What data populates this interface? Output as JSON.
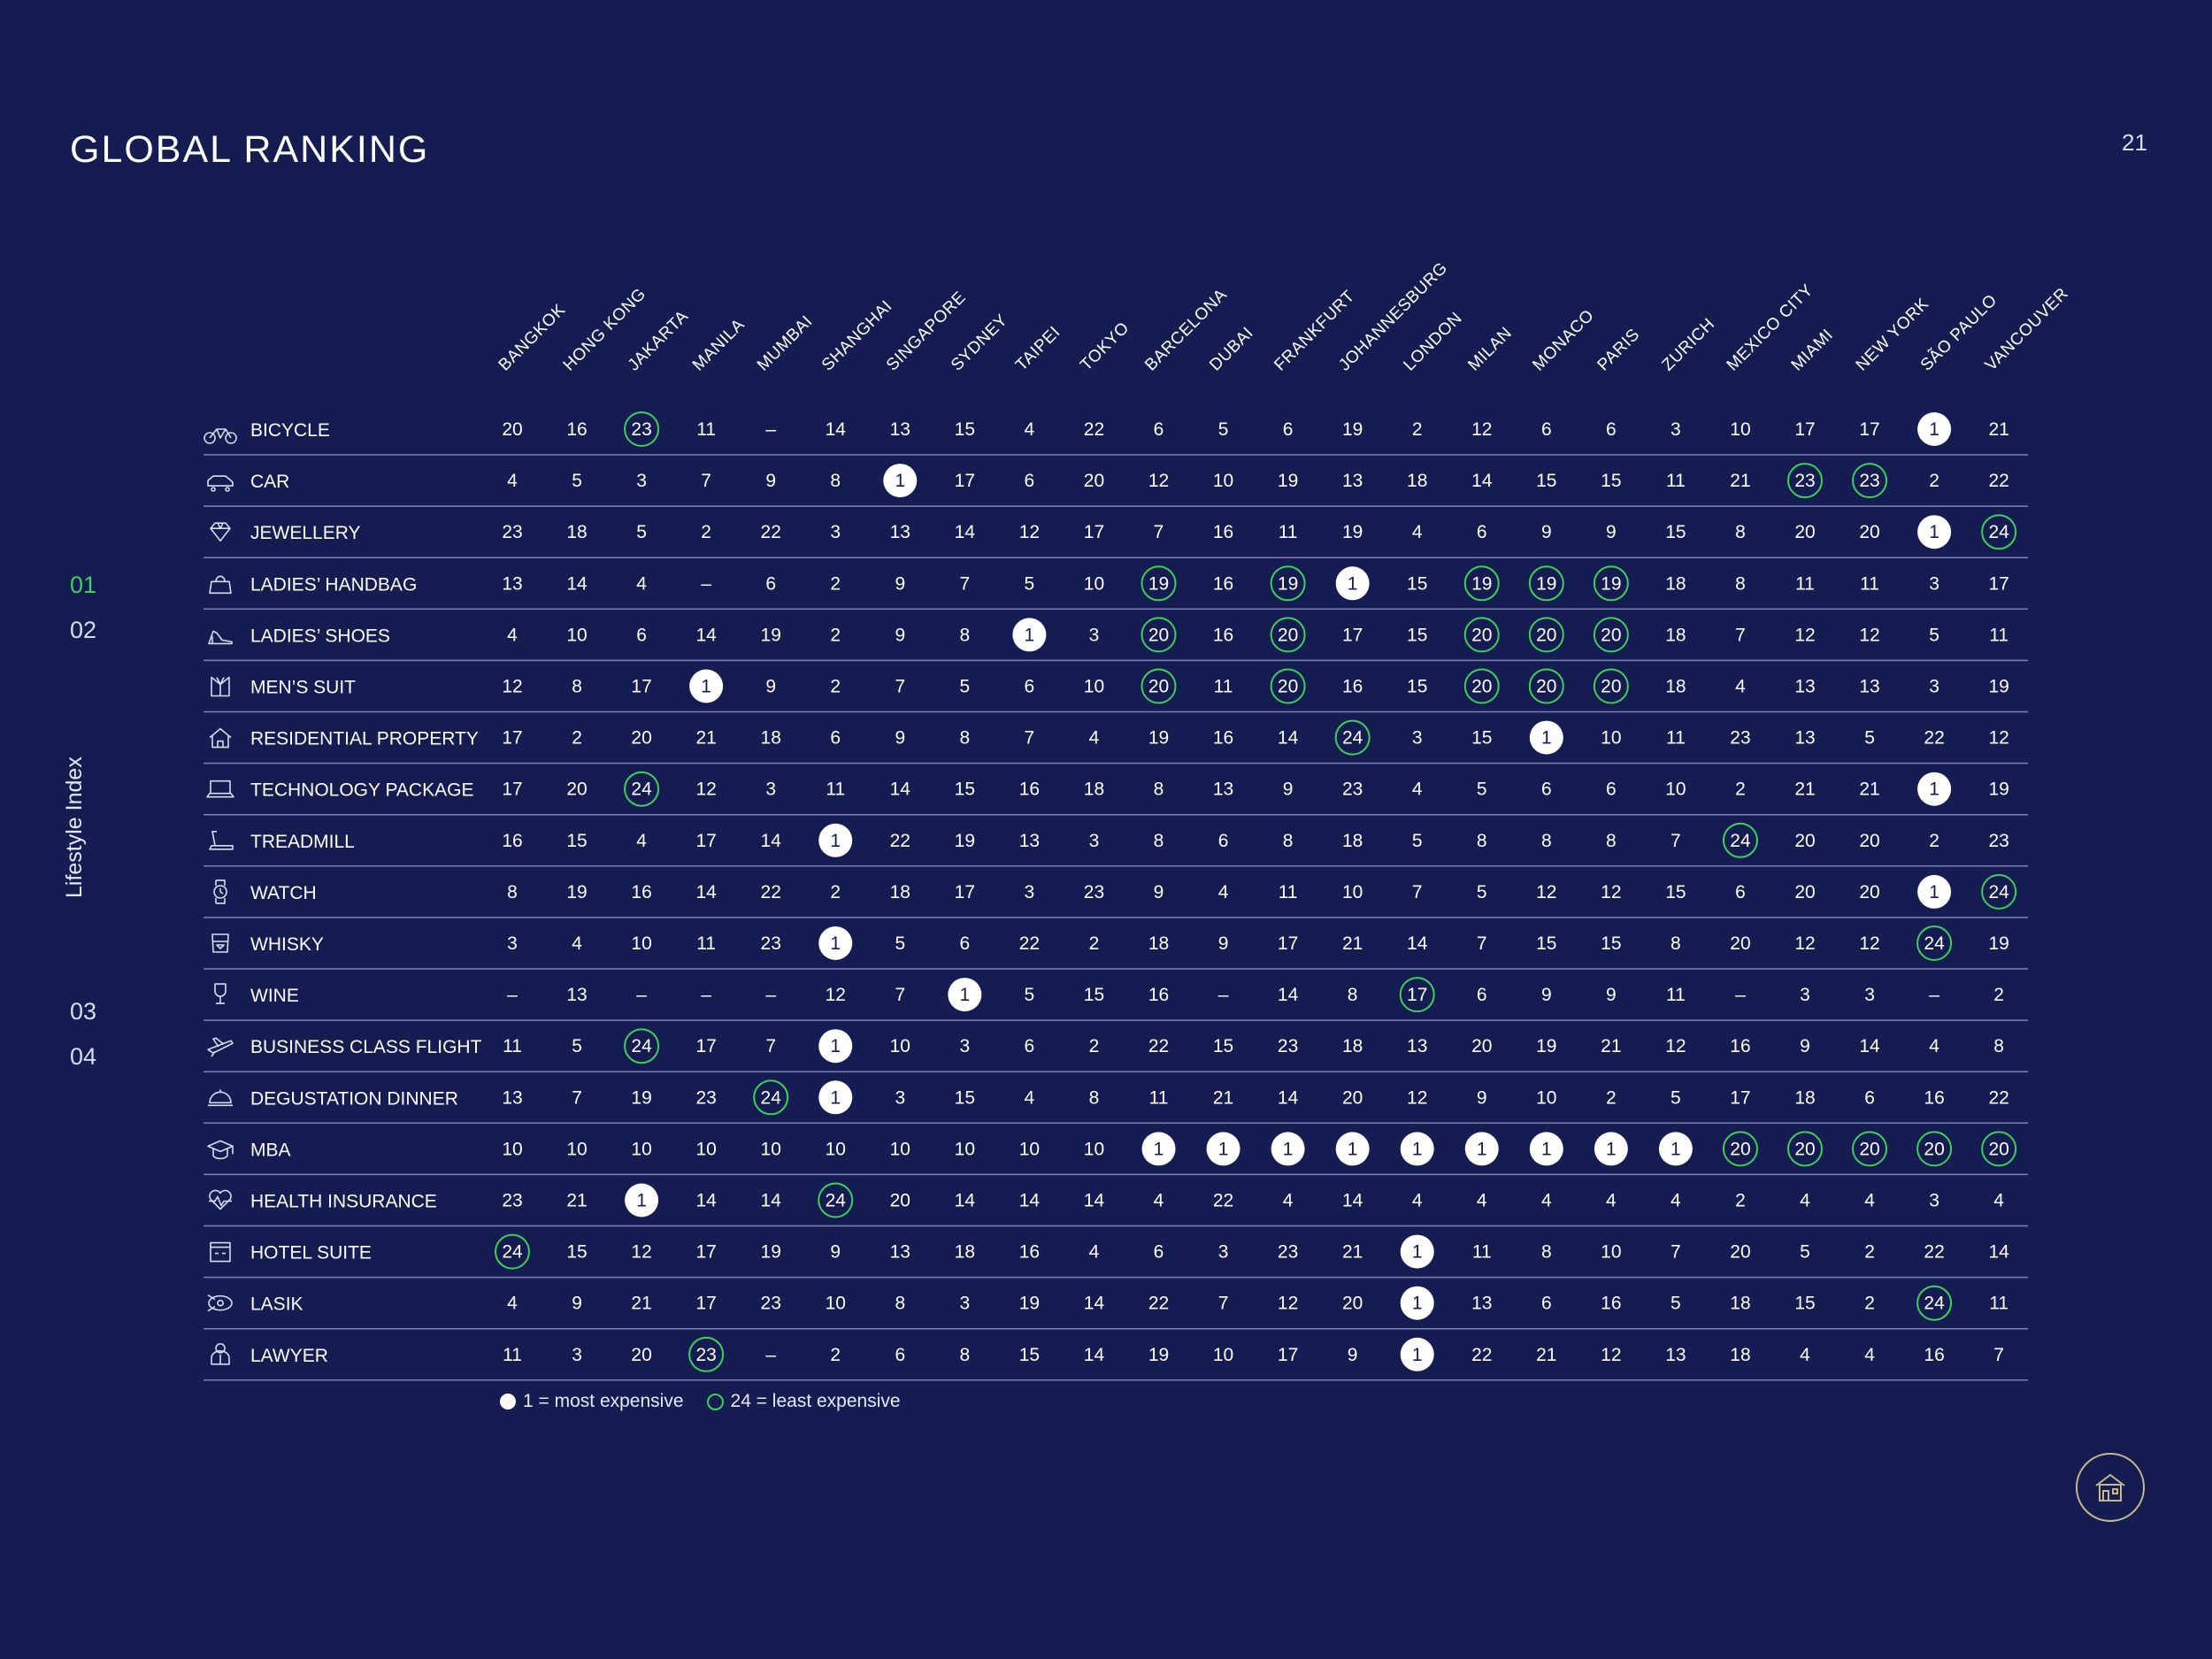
{
  "page": {
    "title": "GLOBAL RANKING",
    "page_number": "21",
    "side_label": "Lifestyle Index",
    "nav": [
      "01",
      "02",
      "03",
      "04"
    ],
    "active_nav": "01"
  },
  "legend": {
    "most": "1 = most expensive",
    "least": "24 = least expensive"
  },
  "colors": {
    "background": "#141c52",
    "text": "#ffffff",
    "accent_green": "#3fcf5a",
    "divider": "#7c84b4"
  },
  "table": {
    "cities": [
      "BANGKOK",
      "HONG KONG",
      "JAKARTA",
      "MANILA",
      "MUMBAI",
      "SHANGHAI",
      "SINGAPORE",
      "SYDNEY",
      "TAIPEI",
      "TOKYO",
      "BARCELONA",
      "DUBAI",
      "FRANKFURT",
      "JOHANNESBURG",
      "LONDON",
      "MILAN",
      "MONACO",
      "PARIS",
      "ZURICH",
      "MEXICO CITY",
      "MIAMI",
      "NEW YORK",
      "SÃO PAULO",
      "VANCOUVER"
    ],
    "rows": [
      {
        "label": "BICYCLE",
        "icon": "bicycle-icon",
        "values": [
          "20",
          "16",
          "23",
          "11",
          "–",
          "14",
          "13",
          "15",
          "4",
          "22",
          "6",
          "5",
          "6",
          "19",
          "2",
          "12",
          "6",
          "6",
          "3",
          "10",
          "17",
          "17",
          "1",
          "21"
        ]
      },
      {
        "label": "CAR",
        "icon": "car-icon",
        "values": [
          "4",
          "5",
          "3",
          "7",
          "9",
          "8",
          "1",
          "17",
          "6",
          "20",
          "12",
          "10",
          "19",
          "13",
          "18",
          "14",
          "15",
          "15",
          "11",
          "21",
          "23",
          "23",
          "2",
          "22"
        ]
      },
      {
        "label": "JEWELLERY",
        "icon": "diamond-icon",
        "values": [
          "23",
          "18",
          "5",
          "2",
          "22",
          "3",
          "13",
          "14",
          "12",
          "17",
          "7",
          "16",
          "11",
          "19",
          "4",
          "6",
          "9",
          "9",
          "15",
          "8",
          "20",
          "20",
          "1",
          "24"
        ]
      },
      {
        "label": "LADIES’ HANDBAG",
        "icon": "handbag-icon",
        "values": [
          "13",
          "14",
          "4",
          "–",
          "6",
          "2",
          "9",
          "7",
          "5",
          "10",
          "19",
          "16",
          "19",
          "1",
          "15",
          "19",
          "19",
          "19",
          "18",
          "8",
          "11",
          "11",
          "3",
          "17"
        ]
      },
      {
        "label": " LADIES’ SHOES",
        "icon": "high-heel-icon",
        "values": [
          "4",
          "10",
          "6",
          "14",
          "19",
          "2",
          "9",
          "8",
          "1",
          "3",
          "20",
          "16",
          "20",
          "17",
          "15",
          "20",
          "20",
          "20",
          "18",
          "7",
          "12",
          "12",
          "5",
          "11"
        ]
      },
      {
        "label": "MEN’S SUIT",
        "icon": "suit-icon",
        "values": [
          "12",
          "8",
          "17",
          "1",
          "9",
          "2",
          "7",
          "5",
          "6",
          "10",
          "20",
          "11",
          "20",
          "16",
          "15",
          "20",
          "20",
          "20",
          "18",
          "4",
          "13",
          "13",
          "3",
          "19"
        ]
      },
      {
        "label": "RESIDENTIAL PROPERTY",
        "icon": "house-icon",
        "values": [
          "17",
          "2",
          "20",
          "21",
          "18",
          "6",
          "9",
          "8",
          "7",
          "4",
          "19",
          "16",
          "14",
          "24",
          "3",
          "15",
          "1",
          "10",
          "11",
          "23",
          "13",
          "5",
          "22",
          "12"
        ]
      },
      {
        "label": "TECHNOLOGY PACKAGE",
        "icon": "laptop-icon",
        "values": [
          "17",
          "20",
          "24",
          "12",
          "3",
          "11",
          "14",
          "15",
          "16",
          "18",
          "8",
          "13",
          "9",
          "23",
          "4",
          "5",
          "6",
          "6",
          "10",
          "2",
          "21",
          "21",
          "1",
          "19"
        ]
      },
      {
        "label": "TREADMILL",
        "icon": "treadmill-icon",
        "values": [
          "16",
          "15",
          "4",
          "17",
          "14",
          "1",
          "22",
          "19",
          "13",
          "3",
          "8",
          "6",
          "8",
          "18",
          "5",
          "8",
          "8",
          "8",
          "7",
          "24",
          "20",
          "20",
          "2",
          "23"
        ]
      },
      {
        "label": "WATCH",
        "icon": "watch-icon",
        "values": [
          "8",
          "19",
          "16",
          "14",
          "22",
          "2",
          "18",
          "17",
          "3",
          "23",
          "9",
          "4",
          "11",
          "10",
          "7",
          "5",
          "12",
          "12",
          "15",
          "6",
          "20",
          "20",
          "1",
          "24"
        ]
      },
      {
        "label": "WHISKY",
        "icon": "whisky-glass-icon",
        "values": [
          "3",
          "4",
          "10",
          "11",
          "23",
          "1",
          "5",
          "6",
          "22",
          "2",
          "18",
          "9",
          "17",
          "21",
          "14",
          "7",
          "15",
          "15",
          "8",
          "20",
          "12",
          "12",
          "24",
          "19"
        ]
      },
      {
        "label": "WINE",
        "icon": "wine-glass-icon",
        "values": [
          "–",
          "13",
          "–",
          "–",
          "–",
          "12",
          "7",
          "1",
          "5",
          "15",
          "16",
          "–",
          "14",
          "8",
          "17",
          "6",
          "9",
          "9",
          "11",
          "–",
          "3",
          "3",
          "–",
          "2"
        ]
      },
      {
        "label": "BUSINESS CLASS FLIGHT",
        "icon": "airplane-icon",
        "values": [
          "11",
          "5",
          "24",
          "17",
          "7",
          "1",
          "10",
          "3",
          "6",
          "2",
          "22",
          "15",
          "23",
          "18",
          "13",
          "20",
          "19",
          "21",
          "12",
          "16",
          "9",
          "14",
          "4",
          "8"
        ]
      },
      {
        "label": "DEGUSTATION DINNER",
        "icon": "cloche-icon",
        "values": [
          "13",
          "7",
          "19",
          "23",
          "24",
          "1",
          "3",
          "15",
          "4",
          "8",
          "11",
          "21",
          "14",
          "20",
          "12",
          "9",
          "10",
          "2",
          "5",
          "17",
          "18",
          "6",
          "16",
          "22"
        ]
      },
      {
        "label": "MBA",
        "icon": "graduation-cap-icon",
        "values": [
          "10",
          "10",
          "10",
          "10",
          "10",
          "10",
          "10",
          "10",
          "10",
          "10",
          "1",
          "1",
          "1",
          "1",
          "1",
          "1",
          "1",
          "1",
          "1",
          "20",
          "20",
          "20",
          "20",
          "20"
        ]
      },
      {
        "label": "HEALTH INSURANCE",
        "icon": "heartbeat-icon",
        "values": [
          "23",
          "21",
          "1",
          "14",
          "14",
          "24",
          "20",
          "14",
          "14",
          "14",
          "4",
          "22",
          "4",
          "14",
          "4",
          "4",
          "4",
          "4",
          "4",
          "2",
          "4",
          "4",
          "3",
          "4"
        ]
      },
      {
        "label": "HOTEL SUITE",
        "icon": "hotel-icon",
        "values": [
          "24",
          "15",
          "12",
          "17",
          "19",
          "9",
          "13",
          "18",
          "16",
          "4",
          "6",
          "3",
          "23",
          "21",
          "1",
          "11",
          "8",
          "10",
          "7",
          "20",
          "5",
          "2",
          "22",
          "14"
        ]
      },
      {
        "label": "LASIK",
        "icon": "eye-laser-icon",
        "values": [
          "4",
          "9",
          "21",
          "17",
          "23",
          "10",
          "8",
          "3",
          "19",
          "14",
          "22",
          "7",
          "12",
          "20",
          "1",
          "13",
          "6",
          "16",
          "5",
          "18",
          "15",
          "2",
          "24",
          "11"
        ]
      },
      {
        "label": "LAWYER",
        "icon": "lawyer-icon",
        "values": [
          "11",
          "3",
          "20",
          "23",
          "–",
          "2",
          "6",
          "8",
          "15",
          "14",
          "19",
          "10",
          "17",
          "9",
          "1",
          "22",
          "21",
          "12",
          "13",
          "18",
          "4",
          "4",
          "16",
          "7"
        ]
      }
    ]
  }
}
